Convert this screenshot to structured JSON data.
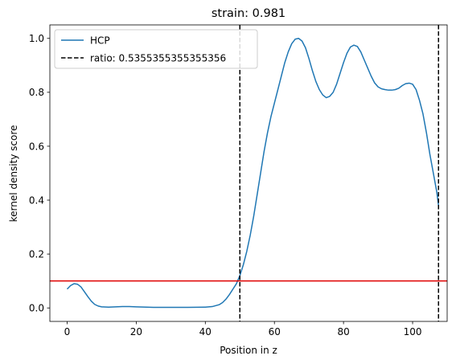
{
  "chart_data": {
    "type": "line",
    "title": "strain: 0.981",
    "xlabel": "Position in z",
    "ylabel": "kernel density score",
    "xlim": [
      -5,
      110
    ],
    "ylim": [
      -0.05,
      1.05
    ],
    "x_ticks": [
      0,
      20,
      40,
      60,
      80,
      100
    ],
    "y_ticks": [
      0.0,
      0.2,
      0.4,
      0.6,
      0.8,
      1.0
    ],
    "x_tick_labels": [
      "0",
      "20",
      "40",
      "60",
      "80",
      "100"
    ],
    "y_tick_labels": [
      "0.0",
      "0.2",
      "0.4",
      "0.6",
      "0.8",
      "1.0"
    ],
    "grid": false,
    "legend_position": "top-left",
    "series": [
      {
        "name": "HCP",
        "color": "#1f77b4",
        "x": [
          0,
          1,
          2,
          3,
          4,
          5,
          6,
          7,
          8,
          9,
          10,
          12,
          14,
          16,
          18,
          20,
          25,
          30,
          35,
          40,
          42,
          44,
          45,
          46,
          47,
          48,
          49,
          50,
          51,
          52,
          53,
          54,
          55,
          56,
          57,
          58,
          59,
          60,
          61,
          62,
          63,
          64,
          65,
          66,
          67,
          68,
          69,
          70,
          71,
          72,
          73,
          74,
          75,
          76,
          77,
          78,
          79,
          80,
          81,
          82,
          83,
          84,
          85,
          86,
          87,
          88,
          89,
          90,
          91,
          92,
          93,
          94,
          95,
          96,
          97,
          98,
          99,
          100,
          101,
          102,
          103,
          104,
          105,
          106,
          107,
          107.5
        ],
        "y": [
          0.07,
          0.083,
          0.09,
          0.088,
          0.078,
          0.06,
          0.042,
          0.025,
          0.013,
          0.007,
          0.004,
          0.003,
          0.004,
          0.005,
          0.005,
          0.004,
          0.002,
          0.002,
          0.002,
          0.003,
          0.005,
          0.012,
          0.02,
          0.033,
          0.05,
          0.07,
          0.09,
          0.12,
          0.16,
          0.21,
          0.27,
          0.34,
          0.42,
          0.5,
          0.58,
          0.65,
          0.71,
          0.76,
          0.81,
          0.86,
          0.91,
          0.95,
          0.98,
          0.997,
          1.0,
          0.99,
          0.965,
          0.925,
          0.88,
          0.84,
          0.81,
          0.79,
          0.78,
          0.785,
          0.8,
          0.83,
          0.87,
          0.91,
          0.945,
          0.968,
          0.975,
          0.97,
          0.95,
          0.92,
          0.89,
          0.86,
          0.835,
          0.82,
          0.813,
          0.81,
          0.808,
          0.808,
          0.81,
          0.815,
          0.825,
          0.832,
          0.834,
          0.83,
          0.81,
          0.77,
          0.72,
          0.65,
          0.57,
          0.5,
          0.43,
          0.38
        ]
      }
    ],
    "reference_lines": [
      {
        "orientation": "vertical",
        "x": 50,
        "style": "dashed",
        "color": "#000000",
        "legend": "ratio: 0.5355355355355356"
      },
      {
        "orientation": "vertical",
        "x": 107.5,
        "style": "dashed",
        "color": "#000000"
      },
      {
        "orientation": "horizontal",
        "y": 0.1,
        "style": "solid",
        "color": "#e00000"
      }
    ],
    "legend": [
      {
        "label": "HCP",
        "style": "solid",
        "color": "#1f77b4"
      },
      {
        "label": "ratio: 0.5355355355355356",
        "style": "dashed",
        "color": "#000000"
      }
    ]
  }
}
